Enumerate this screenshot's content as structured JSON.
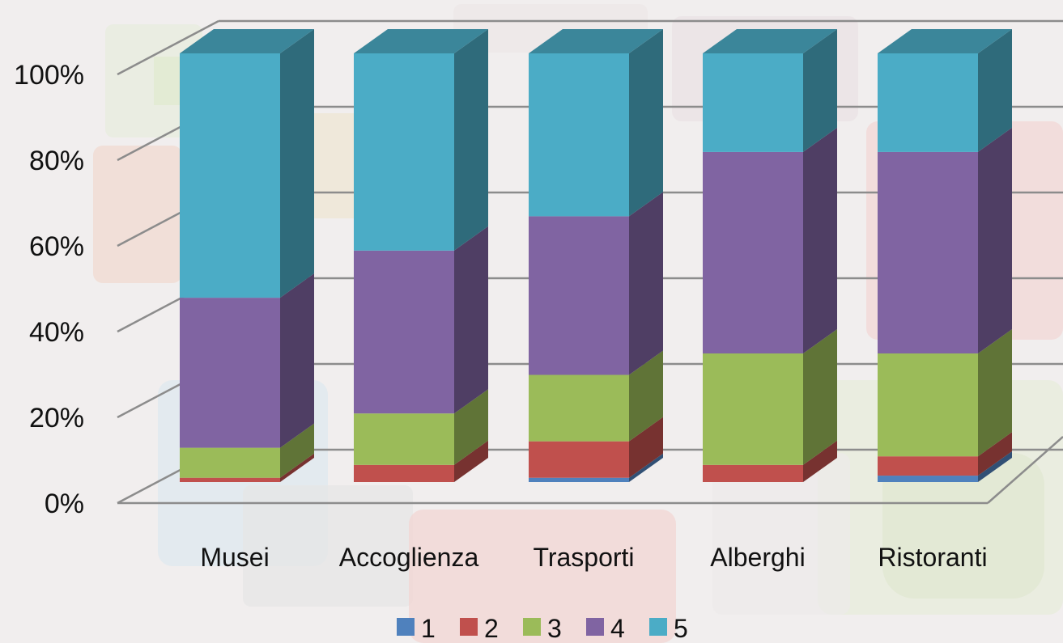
{
  "chart_data": {
    "type": "bar",
    "stacked": true,
    "percent": true,
    "three_d": true,
    "title": "",
    "xlabel": "",
    "ylabel": "",
    "categories": [
      "Musei",
      "Accoglienza",
      "Trasporti",
      "Alberghi",
      "Ristoranti"
    ],
    "series": [
      {
        "name": "1",
        "color": "#4f81bd",
        "values": [
          0,
          0,
          1,
          0,
          1.5
        ]
      },
      {
        "name": "2",
        "color": "#c0504d",
        "values": [
          1,
          4,
          8.5,
          4,
          4.5
        ]
      },
      {
        "name": "3",
        "color": "#9bbb59",
        "values": [
          7,
          12,
          15.5,
          26,
          24
        ]
      },
      {
        "name": "4",
        "color": "#8064a2",
        "values": [
          35,
          38,
          37,
          47,
          47
        ]
      },
      {
        "name": "5",
        "color": "#4bacc6",
        "values": [
          57,
          46,
          38,
          23,
          23
        ]
      }
    ],
    "yticks": [
      "0%",
      "20%",
      "40%",
      "60%",
      "80%",
      "100%"
    ],
    "ylim": [
      0,
      100
    ],
    "grid": true,
    "legend_position": "bottom"
  }
}
